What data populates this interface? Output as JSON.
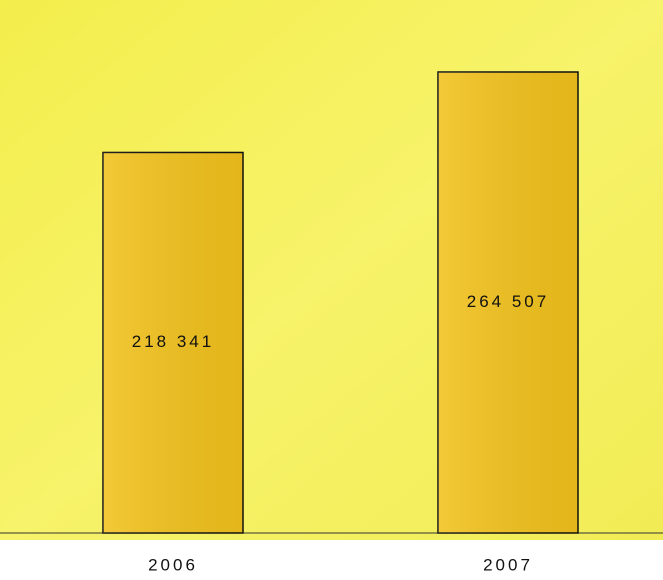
{
  "chart_data": {
    "type": "bar",
    "categories": [
      "2006",
      "2007"
    ],
    "values": [
      218341,
      264507
    ],
    "value_labels": [
      "218 341",
      "264 507"
    ],
    "color": "#f2c21c"
  }
}
